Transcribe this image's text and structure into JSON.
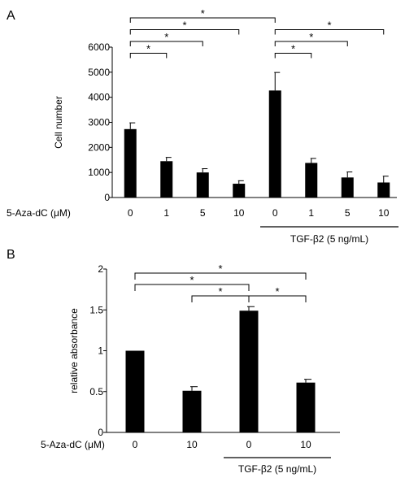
{
  "panels": {
    "a": {
      "label": "A"
    },
    "b": {
      "label": "B"
    }
  },
  "chart_data": [
    {
      "type": "bar",
      "panel": "A",
      "ylabel": "Cell number",
      "row_label": "5-Aza-dC (μM)",
      "categories": [
        "0",
        "1",
        "5",
        "10",
        "0",
        "1",
        "5",
        "10"
      ],
      "values": [
        2730,
        1450,
        1000,
        550,
        4270,
        1380,
        800,
        600
      ],
      "errors": [
        250,
        150,
        150,
        120,
        720,
        180,
        220,
        250
      ],
      "ylim": [
        0,
        6000
      ],
      "yticks": [
        "0",
        "1000",
        "2000",
        "3000",
        "4000",
        "5000",
        "6000"
      ],
      "ytick_values": [
        0,
        1000,
        2000,
        3000,
        4000,
        5000,
        6000
      ],
      "group_label": "TGF-β2 (5 ng/mL)",
      "group_indices": [
        4,
        5,
        6,
        7
      ],
      "bar_color": "#000000",
      "significance": [
        {
          "from": 0,
          "to": 4,
          "label": "*"
        },
        {
          "from": 0,
          "to": 3,
          "label": "*"
        },
        {
          "from": 0,
          "to": 2,
          "label": "*"
        },
        {
          "from": 0,
          "to": 1,
          "label": "*"
        },
        {
          "from": 4,
          "to": 7,
          "label": "*"
        },
        {
          "from": 4,
          "to": 6,
          "label": "*"
        },
        {
          "from": 4,
          "to": 5,
          "label": "*"
        }
      ]
    },
    {
      "type": "bar",
      "panel": "B",
      "ylabel": "relative absorbance",
      "row_label": "5-Aza-dC (μM)",
      "categories": [
        "0",
        "10",
        "0",
        "10"
      ],
      "values": [
        1.0,
        0.51,
        1.49,
        0.61
      ],
      "errors": [
        0,
        0.05,
        0.05,
        0.04
      ],
      "ylim": [
        0,
        2
      ],
      "yticks": [
        "0",
        "0.5",
        "1",
        "1.5",
        "2"
      ],
      "ytick_values": [
        0,
        0.5,
        1,
        1.5,
        2
      ],
      "group_label": "TGF-β2 (5 ng/mL)",
      "group_indices": [
        2,
        3
      ],
      "bar_color": "#000000",
      "significance": [
        {
          "from": 0,
          "to": 3,
          "label": "*"
        },
        {
          "from": 0,
          "to": 2,
          "label": "*"
        },
        {
          "from": 1,
          "to": 2,
          "label": "*"
        },
        {
          "from": 2,
          "to": 3,
          "label": "*"
        }
      ]
    }
  ]
}
